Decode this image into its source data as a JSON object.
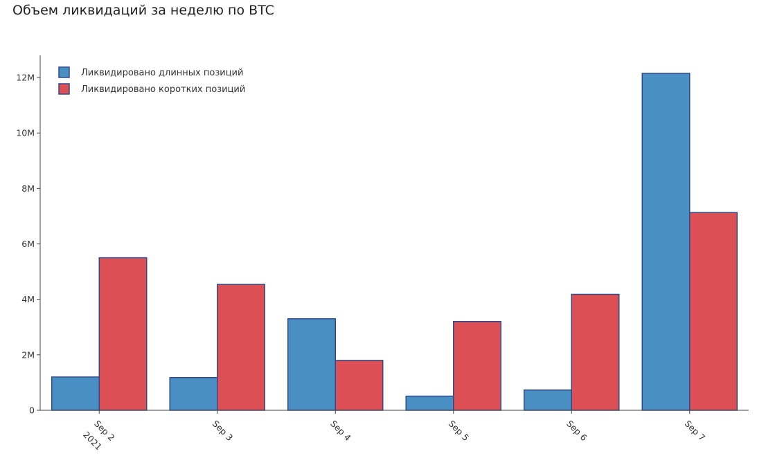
{
  "chart_data": {
    "type": "bar",
    "title": "Объем ликвидаций за неделю по BTC",
    "categories": [
      "Sep 2",
      "Sep 3",
      "Sep 4",
      "Sep 5",
      "Sep 6",
      "Sep 7"
    ],
    "year_label": "2021",
    "series": [
      {
        "name": "Ликвидировано длинных позиций",
        "color": "#4a8fc3",
        "values": [
          1200000,
          1180000,
          3300000,
          510000,
          730000,
          12150000
        ]
      },
      {
        "name": "Ликвидировано коротких позиций",
        "color": "#dc5055",
        "values": [
          5500000,
          4540000,
          1800000,
          3200000,
          4180000,
          7130000
        ]
      }
    ],
    "ylim": [
      0,
      12800000
    ],
    "yticks": [
      0,
      2000000,
      4000000,
      6000000,
      8000000,
      10000000,
      12000000
    ],
    "ytick_labels": [
      "0",
      "2M",
      "4M",
      "6M",
      "8M",
      "10M",
      "12M"
    ],
    "bar_outline_color": "#2f4b8a",
    "legend_position": "top-left",
    "grid": false,
    "xlabel": "",
    "ylabel": ""
  }
}
